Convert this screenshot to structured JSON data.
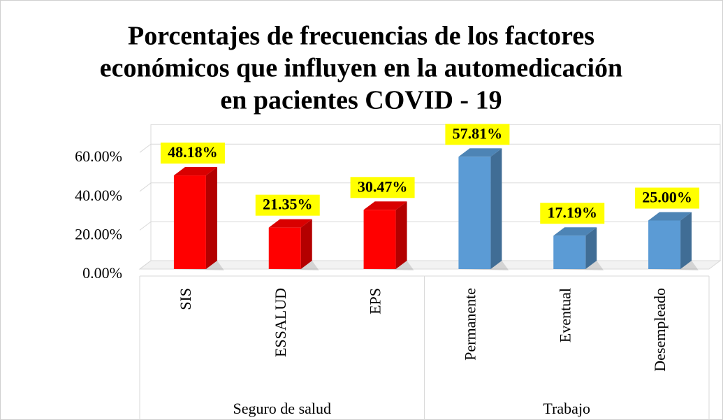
{
  "chart_data": {
    "type": "bar3d",
    "title": [
      "Porcentajes de frecuencias de los factores",
      "económicos que influyen en la automedicación",
      "en pacientes COVID - 19"
    ],
    "categories": [
      "SIS",
      "ESSALUD",
      "EPS",
      "Permanente",
      "Eventual",
      "Desempleado"
    ],
    "groups": [
      {
        "name": "Seguro de salud",
        "size": 3
      },
      {
        "name": "Trabajo",
        "size": 3
      }
    ],
    "values": [
      48.18,
      21.35,
      30.47,
      57.81,
      17.19,
      25.0
    ],
    "value_labels": [
      "48.18%",
      "21.35%",
      "30.47%",
      "57.81%",
      "17.19%",
      "25.00%"
    ],
    "colors": [
      "#ff0000",
      "#ff0000",
      "#ff0000",
      "#5b9bd5",
      "#5b9bd5",
      "#5b9bd5"
    ],
    "ylim": [
      0,
      70
    ],
    "yticks": [
      {
        "value": 0,
        "label": "0.00%"
      },
      {
        "value": 20,
        "label": "20.00%"
      },
      {
        "value": 40,
        "label": "40.00%"
      },
      {
        "value": 60,
        "label": "60.00%"
      }
    ],
    "grid": true
  }
}
